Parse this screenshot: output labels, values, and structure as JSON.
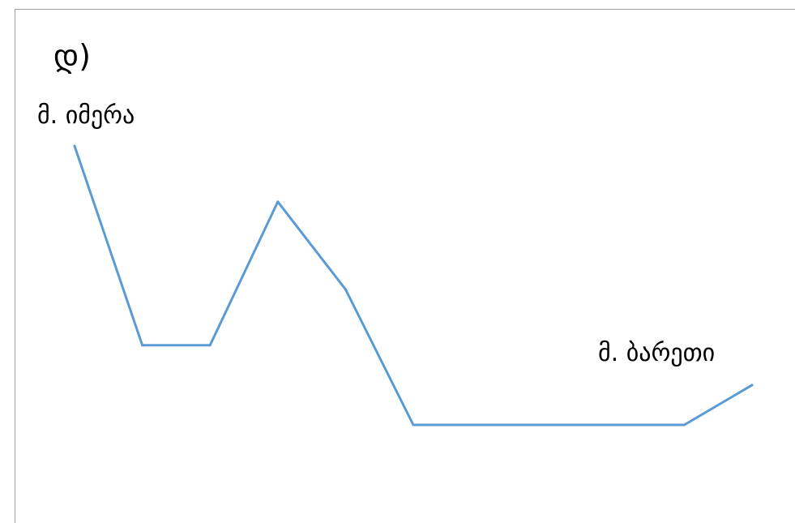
{
  "panel_label": "დ)",
  "chart_data": {
    "type": "line",
    "title": "",
    "xlabel": "",
    "ylabel": "",
    "x": [
      0,
      1,
      2,
      3,
      4,
      5,
      6,
      7,
      8,
      9,
      10
    ],
    "ylim": [
      0,
      10
    ],
    "grid": false,
    "series": [
      {
        "values": [
          10,
          5,
          5,
          8.6,
          6.4,
          3,
          3,
          3,
          3,
          3,
          4
        ],
        "color": "#5b9bd5"
      }
    ],
    "annotations": [
      {
        "text": "მ. იმერა",
        "x": 0,
        "anchor": "above-start"
      },
      {
        "text": "მ. ბარეთი",
        "x": 10,
        "anchor": "above-end"
      }
    ]
  }
}
